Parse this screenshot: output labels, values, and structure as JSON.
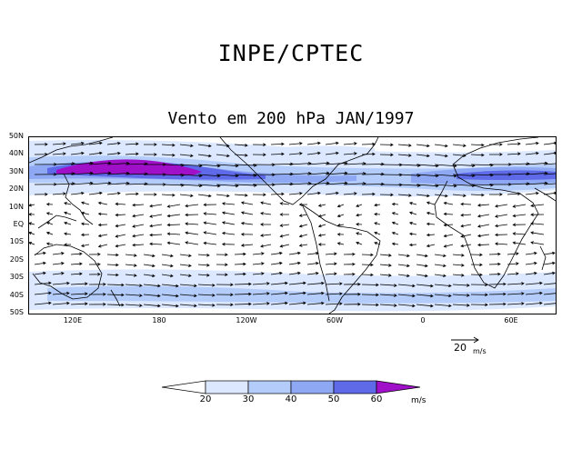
{
  "header": {
    "title": "INPE/CPTEC",
    "subtitle": "Vento em 200 hPa JAN/1997"
  },
  "map": {
    "lat_labels": [
      "50N",
      "40N",
      "30N",
      "20N",
      "10N",
      "EQ",
      "10S",
      "20S",
      "30S",
      "40S",
      "50S"
    ],
    "lon_labels": [
      "120E",
      "180",
      "120W",
      "60W",
      "0",
      "60E"
    ]
  },
  "reference_vector": {
    "value": "20",
    "unit": "m/s"
  },
  "colorbar": {
    "labels": [
      "20",
      "30",
      "40",
      "50",
      "60"
    ],
    "unit": "m/s",
    "colors": [
      "#ffffff",
      "#dce8ff",
      "#b4ccfa",
      "#8ea8f4",
      "#5e6ae8",
      "#a010c8"
    ]
  },
  "wind_band_colors": {
    "light": "#dce8ff",
    "mid": "#b4ccfa",
    "strong": "#8ea8f4",
    "core": "#5e6ae8",
    "max": "#a010c8"
  }
}
